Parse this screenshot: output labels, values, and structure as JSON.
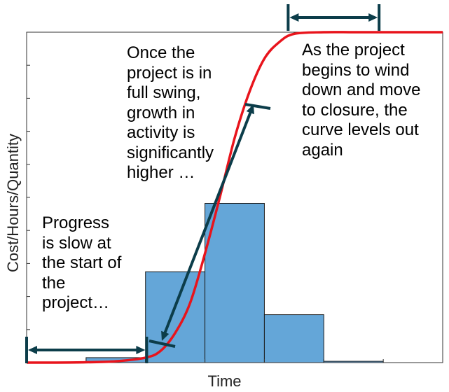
{
  "chart_data": {
    "type": "bar",
    "title": "",
    "xlabel": "Time",
    "ylabel": "Cost/Hours/Quantity",
    "bins": [
      {
        "start": 1,
        "end": 2,
        "value": 1.5
      },
      {
        "start": 2,
        "end": 3,
        "value": 27.5
      },
      {
        "start": 3,
        "end": 4,
        "value": 48.2
      },
      {
        "start": 4,
        "end": 5,
        "value": 14.5
      },
      {
        "start": 5,
        "end": 6,
        "value": 0.4
      }
    ],
    "bar_color": "#64a6d8",
    "curve": {
      "name": "",
      "color": "#e8141c",
      "shape": "S-curve",
      "x": [
        0,
        0.5,
        1,
        1.5,
        2,
        2.25,
        2.5,
        2.75,
        3,
        3.25,
        3.5,
        3.75,
        4,
        4.25,
        4.5,
        5,
        5.5,
        6,
        6.5,
        7
      ],
      "y": [
        0,
        0,
        0.1,
        0.4,
        1.5,
        3.5,
        9,
        18,
        33,
        50,
        68,
        82,
        92,
        97,
        99.5,
        100,
        100,
        100,
        100,
        100
      ]
    },
    "xlim": [
      0,
      7
    ],
    "ylim": [
      0,
      100
    ],
    "grid": false,
    "arrows_color": "#0c3d4a",
    "annotations": [
      {
        "id": "slow_start",
        "text": "Progress\nis slow at\nthe start of\nthe\nproject…"
      },
      {
        "id": "full_swing",
        "text": "Once the\nproject is in\nfull swing,\ngrowth in\nactivity is\nsignificantly\nhigher …"
      },
      {
        "id": "wind_down",
        "text": "As the project\nbegins to wind\ndown and move\nto closure, the\ncurve levels out\nagain"
      }
    ]
  }
}
